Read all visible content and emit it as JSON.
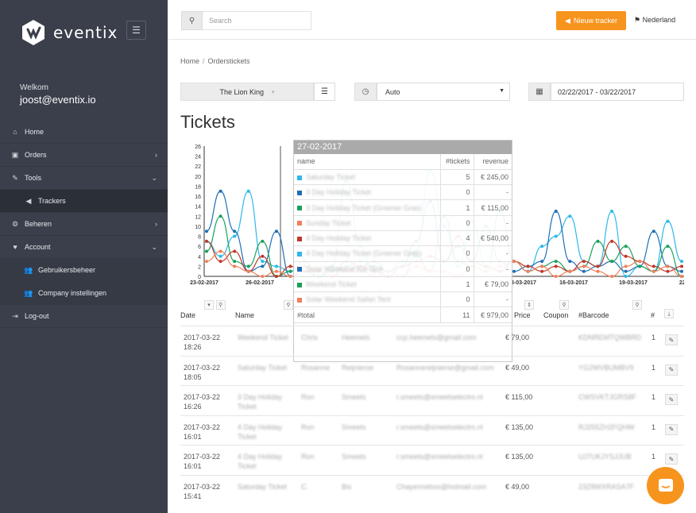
{
  "sidebar": {
    "brand": "eventix",
    "welcome": "Welkom",
    "user": "joost@eventix.io",
    "items": [
      {
        "label": "Home",
        "icon": "home-icon"
      },
      {
        "label": "Orders",
        "icon": "orders-icon"
      },
      {
        "label": "Tools",
        "icon": "wrench-icon"
      },
      {
        "label": "Trackers",
        "icon": "megaphone-icon"
      },
      {
        "label": "Beheren",
        "icon": "cogs-icon"
      },
      {
        "label": "Account",
        "icon": "heart-icon"
      },
      {
        "label": "Gebruikersbeheer",
        "icon": "users-icon"
      },
      {
        "label": "Company instellingen",
        "icon": "users-icon"
      },
      {
        "label": "Log-out",
        "icon": "logout-icon"
      }
    ]
  },
  "topbar": {
    "search_placeholder": "Search",
    "tracker_button": "Nieuw tracker",
    "language": "Nederland"
  },
  "breadcrumb": {
    "home": "Home",
    "current": "Orderstickets"
  },
  "filters": {
    "event": "The Lion King",
    "interval": "Auto",
    "date_range": "02/22/2017 - 03/22/2017"
  },
  "page_title": "Tickets",
  "chart_data": {
    "type": "line",
    "x_ticks": [
      "23-02-2017",
      "26-02-2017",
      "13-03-2017",
      "16-03-2017",
      "19-03-2017",
      "22-03-2"
    ],
    "y_ticks": [
      0,
      2,
      4,
      6,
      8,
      10,
      12,
      14,
      16,
      18,
      20,
      22,
      24,
      26
    ],
    "ylim": [
      0,
      26
    ],
    "grid": false,
    "series": [
      {
        "color": "#2bb9e8",
        "values": [
          7,
          4,
          8,
          17,
          3,
          2,
          1,
          3,
          0,
          2,
          19,
          6,
          0,
          1,
          3,
          5,
          21,
          10,
          2,
          11,
          2,
          1,
          3,
          1,
          6,
          8,
          12,
          3,
          2,
          13,
          0,
          2,
          1,
          11,
          3
        ]
      },
      {
        "color": "#1f6fb3",
        "values": [
          9,
          17,
          9,
          1,
          2,
          9,
          0,
          1,
          0,
          2,
          1,
          2,
          3,
          1,
          2,
          7,
          15,
          3,
          6,
          3,
          10,
          3,
          1,
          2,
          3,
          13,
          3,
          1,
          2,
          3,
          1,
          2,
          9,
          2,
          1
        ]
      },
      {
        "color": "#1aa05a",
        "values": [
          5,
          12,
          3,
          2,
          7,
          0,
          1,
          3,
          0,
          1,
          2,
          3,
          2,
          1,
          0,
          4,
          1,
          12,
          3,
          2,
          1,
          13,
          3,
          1,
          2,
          3,
          1,
          2,
          7,
          3,
          6,
          2,
          1,
          6,
          0
        ]
      },
      {
        "color": "#c0392b",
        "values": [
          7,
          3,
          5,
          1,
          4,
          0,
          2,
          1,
          1,
          0,
          3,
          2,
          1,
          0,
          2,
          3,
          4,
          3,
          8,
          3,
          2,
          1,
          3,
          2,
          1,
          2,
          1,
          3,
          2,
          7,
          4,
          3,
          2,
          1,
          2
        ]
      },
      {
        "color": "#f07f5a",
        "values": [
          3,
          5,
          2,
          1,
          0,
          1,
          0,
          2,
          1,
          0,
          1,
          1,
          0,
          1,
          0,
          2,
          1,
          1,
          0,
          2,
          1,
          2,
          3,
          1,
          2,
          0,
          1,
          2,
          1,
          0,
          2,
          3,
          1,
          2,
          0
        ]
      }
    ]
  },
  "tooltip": {
    "date": "27-02-2017",
    "col_name": "name",
    "col_tickets": "#tickets",
    "col_revenue": "revenue",
    "rows": [
      {
        "color": "#2bb9e8",
        "name": "Saturday Ticket",
        "tickets": "5",
        "revenue": "€ 245,00"
      },
      {
        "color": "#1f6fb3",
        "name": "3 Day Holiday Ticket",
        "tickets": "0",
        "revenue": "-"
      },
      {
        "color": "#1aa05a",
        "name": "3 Day Holiday Ticket (Groener Gras)",
        "tickets": "1",
        "revenue": "€ 115,00"
      },
      {
        "color": "#f07f5a",
        "name": "Sunday Ticket",
        "tickets": "0",
        "revenue": "-"
      },
      {
        "color": "#c0392b",
        "name": "4 Day Holiday Ticket",
        "tickets": "4",
        "revenue": "€ 540,00"
      },
      {
        "color": "#2bb9e8",
        "name": "4 Day Holiday Ticket (Groener Gras)",
        "tickets": "0",
        "revenue": "-"
      },
      {
        "color": "#1f6fb3",
        "name": "Solar Weekend Kid Tent",
        "tickets": "0",
        "revenue": "-"
      },
      {
        "color": "#1aa05a",
        "name": "Weekend Ticket",
        "tickets": "1",
        "revenue": "€ 79,00"
      },
      {
        "color": "#f07f5a",
        "name": "Solar Weekend Safari Tent",
        "tickets": "0",
        "revenue": "-"
      }
    ],
    "total_label": "#total",
    "total_tickets": "11",
    "total_revenue": "€ 979,00"
  },
  "table": {
    "headers": {
      "date": "Date",
      "name": "Name",
      "price": "Price",
      "coupon": "Coupon",
      "barcode": "#Barcode",
      "count": "#"
    },
    "rows": [
      {
        "date1": "2017-03-22",
        "date2": "18:26",
        "ticket": "Weekend Ticket",
        "first": "Chris",
        "last": "Heemels",
        "email": "ccp.heemels@gmail.com",
        "price": "€ 79,00",
        "barcode": "KDNREMTQWBRD",
        "count": "1"
      },
      {
        "date1": "2017-03-22",
        "date2": "18:05",
        "ticket": "Saturday Ticket",
        "first": "Rosanne",
        "last": "Reijnierse",
        "email": "Rosannereijnierse@gmail.com",
        "price": "€ 49,00",
        "barcode": "YG2WVBUMBV9",
        "count": "1"
      },
      {
        "date1": "2017-03-22",
        "date2": "16:26",
        "ticket": "3 Day Holiday Ticket",
        "first": "Ron",
        "last": "Smeets",
        "email": "r.smeets@smeetselectro.nl",
        "price": "€ 115,00",
        "barcode": "CWSVKTJGRS8F",
        "count": "1"
      },
      {
        "date1": "2017-03-22",
        "date2": "16:01",
        "ticket": "4 Day Holiday Ticket",
        "first": "Ron",
        "last": "Smeets",
        "email": "r.smeets@smeetselectro.nl",
        "price": "€ 135,00",
        "barcode": "RJ255ZH2FQHW",
        "count": "1"
      },
      {
        "date1": "2017-03-22",
        "date2": "16:01",
        "ticket": "4 Day Holiday Ticket",
        "first": "Ron",
        "last": "Smeets",
        "email": "r.smeets@smeetselectro.nl",
        "price": "€ 135,00",
        "barcode": "UJ7UKJYSJJUB",
        "count": "1"
      },
      {
        "date1": "2017-03-22",
        "date2": "15:41",
        "ticket": "Saturday Ticket",
        "first": "C.",
        "last": "Bis",
        "email": "Chayennebos@hotmail.com",
        "price": "€ 49,00",
        "barcode": "23Z8WXRASA7F",
        "count": "1"
      }
    ]
  },
  "colors": {
    "sidebar": "#3a3f4b",
    "accent": "#f7941d"
  }
}
